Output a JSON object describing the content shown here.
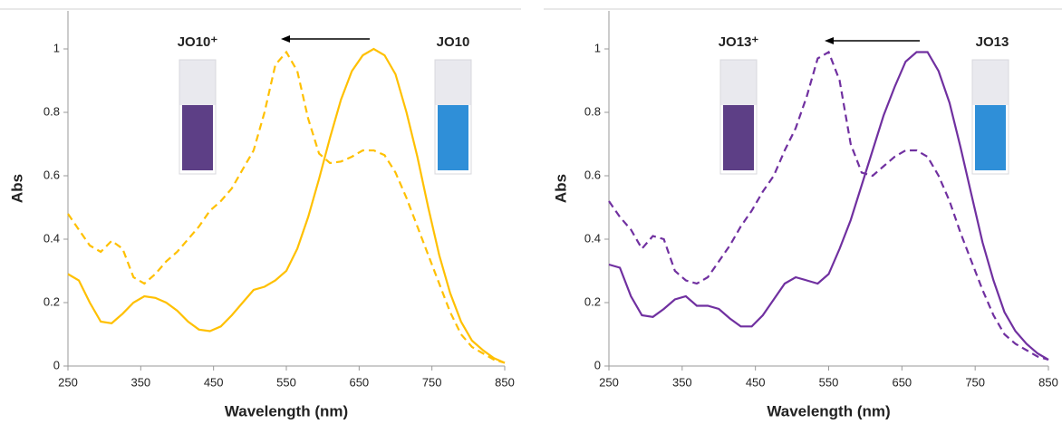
{
  "chart_data": [
    {
      "type": "line",
      "xlabel": "Wavelength (nm)",
      "ylabel": "Abs",
      "xlim": [
        250,
        850
      ],
      "ylim": [
        0,
        1.12
      ],
      "xticks": [
        250,
        350,
        450,
        550,
        650,
        750,
        850
      ],
      "yticks": [
        0,
        0.2,
        0.4,
        0.6,
        0.8,
        1
      ],
      "x": [
        250,
        265,
        280,
        295,
        310,
        325,
        340,
        355,
        370,
        385,
        400,
        415,
        430,
        445,
        460,
        475,
        490,
        505,
        520,
        535,
        550,
        565,
        580,
        595,
        610,
        625,
        640,
        655,
        670,
        685,
        700,
        715,
        730,
        745,
        760,
        775,
        790,
        805,
        820,
        835,
        850
      ],
      "series": [
        {
          "name": "JO10",
          "color": "#FFC000",
          "dashed": false,
          "values": [
            0.29,
            0.27,
            0.2,
            0.14,
            0.135,
            0.165,
            0.2,
            0.22,
            0.215,
            0.2,
            0.175,
            0.14,
            0.115,
            0.11,
            0.125,
            0.16,
            0.2,
            0.24,
            0.25,
            0.27,
            0.3,
            0.37,
            0.47,
            0.59,
            0.72,
            0.84,
            0.93,
            0.98,
            1.0,
            0.98,
            0.92,
            0.8,
            0.66,
            0.5,
            0.35,
            0.23,
            0.14,
            0.08,
            0.05,
            0.025,
            0.01
          ]
        },
        {
          "name": "JO10⁺",
          "color": "#FFC000",
          "dashed": true,
          "values": [
            0.48,
            0.43,
            0.38,
            0.36,
            0.395,
            0.37,
            0.28,
            0.26,
            0.29,
            0.33,
            0.36,
            0.4,
            0.44,
            0.49,
            0.52,
            0.56,
            0.62,
            0.68,
            0.8,
            0.95,
            0.99,
            0.93,
            0.78,
            0.67,
            0.64,
            0.645,
            0.66,
            0.68,
            0.68,
            0.665,
            0.61,
            0.53,
            0.44,
            0.35,
            0.26,
            0.17,
            0.1,
            0.06,
            0.04,
            0.02,
            0.01
          ]
        }
      ]
    },
    {
      "type": "line",
      "xlabel": "Wavelength (nm)",
      "ylabel": "Abs",
      "xlim": [
        250,
        850
      ],
      "ylim": [
        0,
        1.12
      ],
      "xticks": [
        250,
        350,
        450,
        550,
        650,
        750,
        850
      ],
      "yticks": [
        0,
        0.2,
        0.4,
        0.6,
        0.8,
        1
      ],
      "x": [
        250,
        265,
        280,
        295,
        310,
        325,
        340,
        355,
        370,
        385,
        400,
        415,
        430,
        445,
        460,
        475,
        490,
        505,
        520,
        535,
        550,
        565,
        580,
        595,
        610,
        625,
        640,
        655,
        670,
        685,
        700,
        715,
        730,
        745,
        760,
        775,
        790,
        805,
        820,
        835,
        850
      ],
      "series": [
        {
          "name": "JO13",
          "color": "#7030A0",
          "dashed": false,
          "values": [
            0.32,
            0.31,
            0.22,
            0.16,
            0.155,
            0.18,
            0.21,
            0.22,
            0.19,
            0.19,
            0.18,
            0.15,
            0.125,
            0.125,
            0.16,
            0.21,
            0.26,
            0.28,
            0.27,
            0.26,
            0.29,
            0.37,
            0.46,
            0.57,
            0.68,
            0.79,
            0.88,
            0.96,
            0.99,
            0.99,
            0.93,
            0.83,
            0.69,
            0.54,
            0.39,
            0.27,
            0.17,
            0.11,
            0.07,
            0.04,
            0.02
          ]
        },
        {
          "name": "JO13⁺",
          "color": "#7030A0",
          "dashed": true,
          "values": [
            0.52,
            0.47,
            0.43,
            0.37,
            0.41,
            0.4,
            0.3,
            0.27,
            0.26,
            0.28,
            0.33,
            0.38,
            0.44,
            0.49,
            0.55,
            0.6,
            0.68,
            0.75,
            0.85,
            0.97,
            0.99,
            0.9,
            0.7,
            0.61,
            0.6,
            0.63,
            0.66,
            0.68,
            0.68,
            0.66,
            0.6,
            0.52,
            0.42,
            0.33,
            0.24,
            0.16,
            0.1,
            0.07,
            0.05,
            0.03,
            0.02
          ]
        }
      ]
    }
  ]
}
